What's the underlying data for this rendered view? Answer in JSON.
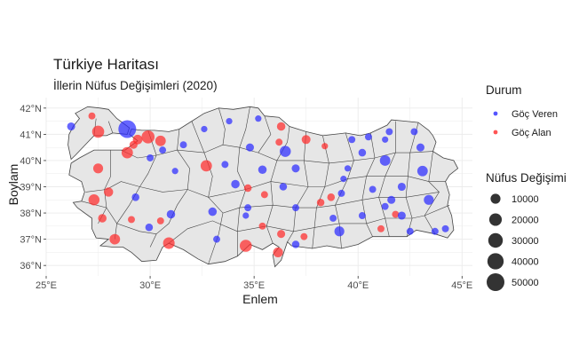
{
  "chart_data": {
    "type": "scatter",
    "title": "Türkiye Haritası",
    "subtitle": "İllerin Nüfus Değişimleri (2020)",
    "xlabel": "Enlem",
    "ylabel": "Boylam",
    "xlim": [
      25,
      45.5
    ],
    "ylim": [
      35.6,
      42.4
    ],
    "x_ticks": [
      25,
      30,
      35,
      40,
      45
    ],
    "x_tick_labels": [
      "25°E",
      "30°E",
      "35°E",
      "40°E",
      "45°E"
    ],
    "y_ticks": [
      36,
      37,
      38,
      39,
      40,
      41,
      42
    ],
    "y_tick_labels": [
      "36°N",
      "37°N",
      "38°N",
      "39°N",
      "40°N",
      "41°N",
      "42°N"
    ],
    "grid": true,
    "legend_position": "right",
    "colors": {
      "gocveren": "#2b2bff",
      "gocalan": "#ff2b2b",
      "land": "#e6e6e6",
      "border": "#444444",
      "grid": "#ebebeb"
    },
    "legend_color": {
      "title": "Durum",
      "items": [
        {
          "label": "Göç Veren",
          "key": "gocveren"
        },
        {
          "label": "Göç Alan",
          "key": "gocalan"
        }
      ]
    },
    "legend_size": {
      "title": "Nüfus Değişimi",
      "items": [
        {
          "label": "10000",
          "value": 10000
        },
        {
          "label": "20000",
          "value": 20000
        },
        {
          "label": "30000",
          "value": 30000
        },
        {
          "label": "40000",
          "value": 40000
        },
        {
          "label": "50000",
          "value": 50000
        }
      ]
    },
    "points": [
      {
        "lon": 26.2,
        "lat": 41.3,
        "v": 5000,
        "s": "gocveren"
      },
      {
        "lon": 27.2,
        "lat": 41.7,
        "v": 3000,
        "s": "gocalan"
      },
      {
        "lon": 27.5,
        "lat": 41.1,
        "v": 18000,
        "s": "gocalan"
      },
      {
        "lon": 28.9,
        "lat": 41.2,
        "v": 50000,
        "s": "gocveren"
      },
      {
        "lon": 29.4,
        "lat": 40.8,
        "v": 9000,
        "s": "gocalan"
      },
      {
        "lon": 29.9,
        "lat": 40.9,
        "v": 22000,
        "s": "gocalan"
      },
      {
        "lon": 30.5,
        "lat": 40.75,
        "v": 12000,
        "s": "gocalan"
      },
      {
        "lon": 29.2,
        "lat": 40.6,
        "v": 5000,
        "s": "gocalan"
      },
      {
        "lon": 28.9,
        "lat": 40.3,
        "v": 15000,
        "s": "gocalan"
      },
      {
        "lon": 30.0,
        "lat": 40.1,
        "v": 3000,
        "s": "gocveren"
      },
      {
        "lon": 30.6,
        "lat": 40.4,
        "v": 3000,
        "s": "gocveren"
      },
      {
        "lon": 31.6,
        "lat": 40.6,
        "v": 3000,
        "s": "gocveren"
      },
      {
        "lon": 31.2,
        "lat": 39.6,
        "v": 2000,
        "s": "gocveren"
      },
      {
        "lon": 32.6,
        "lat": 41.2,
        "v": 2000,
        "s": "gocveren"
      },
      {
        "lon": 33.8,
        "lat": 41.5,
        "v": 2000,
        "s": "gocveren"
      },
      {
        "lon": 35.2,
        "lat": 41.6,
        "v": 2000,
        "s": "gocveren"
      },
      {
        "lon": 32.7,
        "lat": 39.8,
        "v": 15000,
        "s": "gocalan"
      },
      {
        "lon": 33.6,
        "lat": 39.85,
        "v": 3000,
        "s": "gocveren"
      },
      {
        "lon": 34.8,
        "lat": 40.5,
        "v": 5000,
        "s": "gocveren"
      },
      {
        "lon": 36.2,
        "lat": 40.7,
        "v": 3000,
        "s": "gocalan"
      },
      {
        "lon": 36.3,
        "lat": 41.3,
        "v": 6000,
        "s": "gocalan"
      },
      {
        "lon": 37.5,
        "lat": 40.8,
        "v": 7000,
        "s": "gocalan"
      },
      {
        "lon": 36.5,
        "lat": 40.35,
        "v": 14000,
        "s": "gocveren"
      },
      {
        "lon": 35.4,
        "lat": 39.65,
        "v": 6000,
        "s": "gocveren"
      },
      {
        "lon": 37.0,
        "lat": 39.7,
        "v": 5000,
        "s": "gocveren"
      },
      {
        "lon": 34.1,
        "lat": 39.1,
        "v": 6000,
        "s": "gocveren"
      },
      {
        "lon": 34.7,
        "lat": 38.95,
        "v": 4000,
        "s": "gocalan"
      },
      {
        "lon": 35.5,
        "lat": 38.7,
        "v": 3000,
        "s": "gocalan"
      },
      {
        "lon": 36.4,
        "lat": 39.0,
        "v": 4000,
        "s": "gocveren"
      },
      {
        "lon": 37.0,
        "lat": 38.2,
        "v": 3000,
        "s": "gocveren"
      },
      {
        "lon": 34.7,
        "lat": 38.2,
        "v": 3000,
        "s": "gocveren"
      },
      {
        "lon": 33.0,
        "lat": 38.05,
        "v": 6000,
        "s": "gocveren"
      },
      {
        "lon": 35.4,
        "lat": 37.5,
        "v": 3000,
        "s": "gocalan"
      },
      {
        "lon": 34.6,
        "lat": 37.9,
        "v": 2000,
        "s": "gocveren"
      },
      {
        "lon": 34.6,
        "lat": 36.75,
        "v": 18000,
        "s": "gocalan"
      },
      {
        "lon": 33.2,
        "lat": 37.0,
        "v": 3000,
        "s": "gocveren"
      },
      {
        "lon": 36.15,
        "lat": 36.5,
        "v": 10000,
        "s": "gocalan"
      },
      {
        "lon": 36.3,
        "lat": 37.2,
        "v": 5000,
        "s": "gocalan"
      },
      {
        "lon": 37.0,
        "lat": 36.8,
        "v": 4000,
        "s": "gocveren"
      },
      {
        "lon": 37.4,
        "lat": 37.1,
        "v": 3000,
        "s": "gocalan"
      },
      {
        "lon": 38.7,
        "lat": 38.6,
        "v": 4000,
        "s": "gocalan"
      },
      {
        "lon": 38.2,
        "lat": 38.4,
        "v": 4000,
        "s": "gocalan"
      },
      {
        "lon": 38.8,
        "lat": 37.8,
        "v": 3000,
        "s": "gocveren"
      },
      {
        "lon": 39.1,
        "lat": 37.3,
        "v": 10000,
        "s": "gocveren"
      },
      {
        "lon": 39.2,
        "lat": 38.75,
        "v": 3000,
        "s": "gocveren"
      },
      {
        "lon": 39.3,
        "lat": 39.3,
        "v": 2000,
        "s": "gocveren"
      },
      {
        "lon": 39.5,
        "lat": 39.7,
        "v": 2000,
        "s": "gocveren"
      },
      {
        "lon": 38.4,
        "lat": 40.55,
        "v": 2000,
        "s": "gocalan"
      },
      {
        "lon": 39.7,
        "lat": 40.8,
        "v": 3000,
        "s": "gocveren"
      },
      {
        "lon": 40.5,
        "lat": 40.9,
        "v": 3000,
        "s": "gocveren"
      },
      {
        "lon": 40.2,
        "lat": 40.3,
        "v": 4000,
        "s": "gocveren"
      },
      {
        "lon": 41.5,
        "lat": 41.1,
        "v": 3000,
        "s": "gocveren"
      },
      {
        "lon": 42.7,
        "lat": 41.1,
        "v": 3000,
        "s": "gocveren"
      },
      {
        "lon": 41.3,
        "lat": 40.8,
        "v": 2000,
        "s": "gocveren"
      },
      {
        "lon": 41.3,
        "lat": 40.0,
        "v": 12000,
        "s": "gocveren"
      },
      {
        "lon": 43.0,
        "lat": 40.5,
        "v": 5000,
        "s": "gocveren"
      },
      {
        "lon": 43.1,
        "lat": 39.6,
        "v": 12000,
        "s": "gocveren"
      },
      {
        "lon": 42.1,
        "lat": 39.0,
        "v": 5000,
        "s": "gocveren"
      },
      {
        "lon": 41.6,
        "lat": 38.5,
        "v": 5000,
        "s": "gocveren"
      },
      {
        "lon": 40.7,
        "lat": 38.9,
        "v": 3000,
        "s": "gocveren"
      },
      {
        "lon": 40.2,
        "lat": 37.9,
        "v": 3000,
        "s": "gocveren"
      },
      {
        "lon": 41.1,
        "lat": 37.4,
        "v": 3000,
        "s": "gocalan"
      },
      {
        "lon": 41.3,
        "lat": 38.25,
        "v": 3000,
        "s": "gocveren"
      },
      {
        "lon": 41.8,
        "lat": 37.95,
        "v": 3000,
        "s": "gocalan"
      },
      {
        "lon": 42.1,
        "lat": 37.9,
        "v": 5000,
        "s": "gocveren"
      },
      {
        "lon": 42.5,
        "lat": 37.3,
        "v": 3000,
        "s": "gocveren"
      },
      {
        "lon": 43.4,
        "lat": 38.5,
        "v": 10000,
        "s": "gocveren"
      },
      {
        "lon": 43.7,
        "lat": 37.3,
        "v": 3000,
        "s": "gocveren"
      },
      {
        "lon": 44.2,
        "lat": 37.4,
        "v": 3000,
        "s": "gocveren"
      },
      {
        "lon": 27.3,
        "lat": 38.5,
        "v": 14000,
        "s": "gocalan"
      },
      {
        "lon": 27.5,
        "lat": 39.7,
        "v": 10000,
        "s": "gocalan"
      },
      {
        "lon": 28.0,
        "lat": 38.8,
        "v": 8000,
        "s": "gocalan"
      },
      {
        "lon": 27.7,
        "lat": 37.8,
        "v": 6000,
        "s": "gocalan"
      },
      {
        "lon": 28.3,
        "lat": 37.0,
        "v": 12000,
        "s": "gocalan"
      },
      {
        "lon": 29.1,
        "lat": 37.75,
        "v": 3000,
        "s": "gocalan"
      },
      {
        "lon": 29.3,
        "lat": 38.6,
        "v": 4000,
        "s": "gocveren"
      },
      {
        "lon": 29.95,
        "lat": 37.45,
        "v": 4000,
        "s": "gocveren"
      },
      {
        "lon": 30.9,
        "lat": 36.85,
        "v": 16000,
        "s": "gocalan"
      },
      {
        "lon": 30.5,
        "lat": 37.7,
        "v": 3000,
        "s": "gocalan"
      },
      {
        "lon": 31.0,
        "lat": 37.95,
        "v": 6000,
        "s": "gocveren"
      }
    ]
  }
}
